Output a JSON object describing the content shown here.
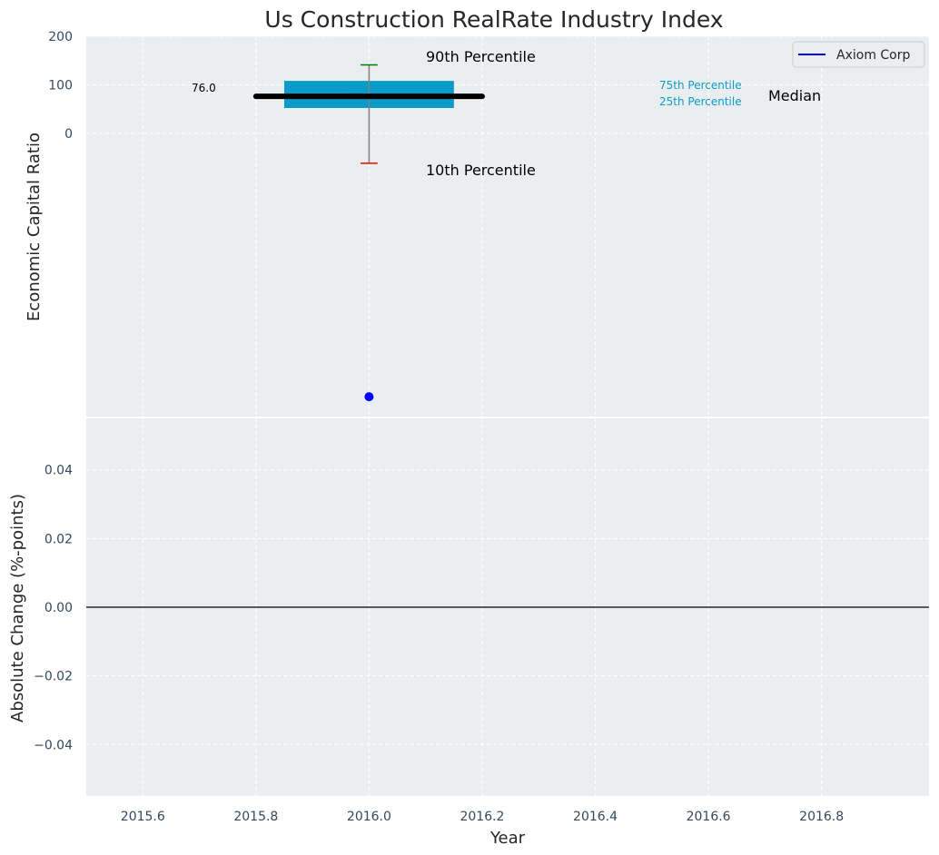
{
  "chart_data": [
    {
      "type": "box",
      "title": "Us Construction RealRate Industry Index",
      "xlabel": "",
      "ylabel": "Economic Capital Ratio",
      "ylim": [
        -585,
        200
      ],
      "yticks": [
        "200",
        "100",
        "0"
      ],
      "grid": true,
      "legend": {
        "placement": "top-right",
        "entries": [
          {
            "name": "Axiom Corp",
            "color": "#0000ff"
          }
        ]
      },
      "box": {
        "x": 2016.0,
        "p10": -62,
        "p25": 52,
        "median": 76,
        "p75": 108,
        "p90": 141,
        "median_label": "76.0"
      },
      "series": [
        {
          "name": "Axiom Corp",
          "x": [
            2016.0
          ],
          "values": [
            -544
          ]
        }
      ],
      "annotations": {
        "p90": "90th Percentile",
        "p10": "10th Percentile",
        "p75": "75th Percentile",
        "p25": "25th Percentile",
        "median": "Median"
      },
      "colors": {
        "box": "#0a9bc8",
        "median": "#000000",
        "whisker_top": "#008000",
        "whisker_bottom": "#ff0000",
        "stem": "#808080",
        "point": "#0000ff",
        "background": "#eaeef0"
      }
    },
    {
      "type": "line",
      "xlabel": "Year",
      "ylabel": "Absolute Change (%-points)",
      "xlim": [
        2015.5,
        2016.99
      ],
      "ylim": [
        -0.055,
        0.055
      ],
      "xticks": [
        "2015.6",
        "2015.8",
        "2016.0",
        "2016.2",
        "2016.4",
        "2016.6",
        "2016.8"
      ],
      "yticks": [
        "0.04",
        "0.02",
        "0.00",
        "−0.02",
        "−0.04"
      ],
      "grid": true,
      "reference_line": {
        "y": 0,
        "color": "#000000"
      },
      "series": []
    }
  ]
}
